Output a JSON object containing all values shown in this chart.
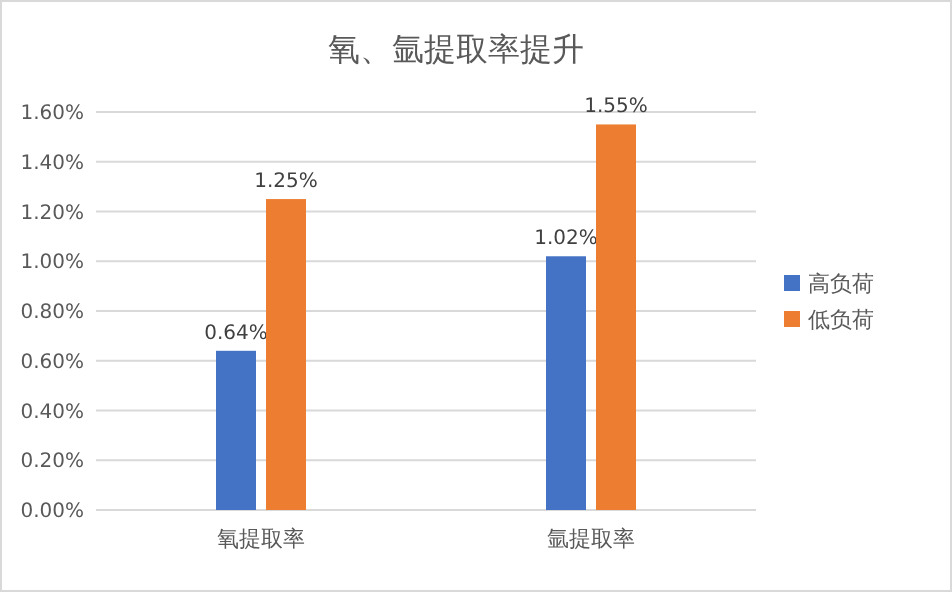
{
  "chart_data": {
    "type": "bar",
    "title": "氧、氩提取率提升",
    "categories": [
      "氧提取率",
      "氩提取率"
    ],
    "series": [
      {
        "name": "高负荷",
        "color": "#4472c4",
        "values": [
          0.64,
          1.02
        ],
        "value_labels": [
          "0.64%",
          "1.02%"
        ]
      },
      {
        "name": "低负荷",
        "color": "#ed7d31",
        "values": [
          1.25,
          1.55
        ],
        "value_labels": [
          "1.25%",
          "1.55%"
        ]
      }
    ],
    "ylim": [
      0,
      1.6
    ],
    "yticks": [
      {
        "value": 0,
        "label": "0.00%"
      },
      {
        "value": 0.2,
        "label": "0.20%"
      },
      {
        "value": 0.4,
        "label": "0.40%"
      },
      {
        "value": 0.6,
        "label": "0.60%"
      },
      {
        "value": 0.8,
        "label": "0.80%"
      },
      {
        "value": 1.0,
        "label": "1.00%"
      },
      {
        "value": 1.2,
        "label": "1.20%"
      },
      {
        "value": 1.4,
        "label": "1.40%"
      },
      {
        "value": 1.6,
        "label": "1.60%"
      }
    ],
    "grid": "y",
    "legend": "right"
  }
}
